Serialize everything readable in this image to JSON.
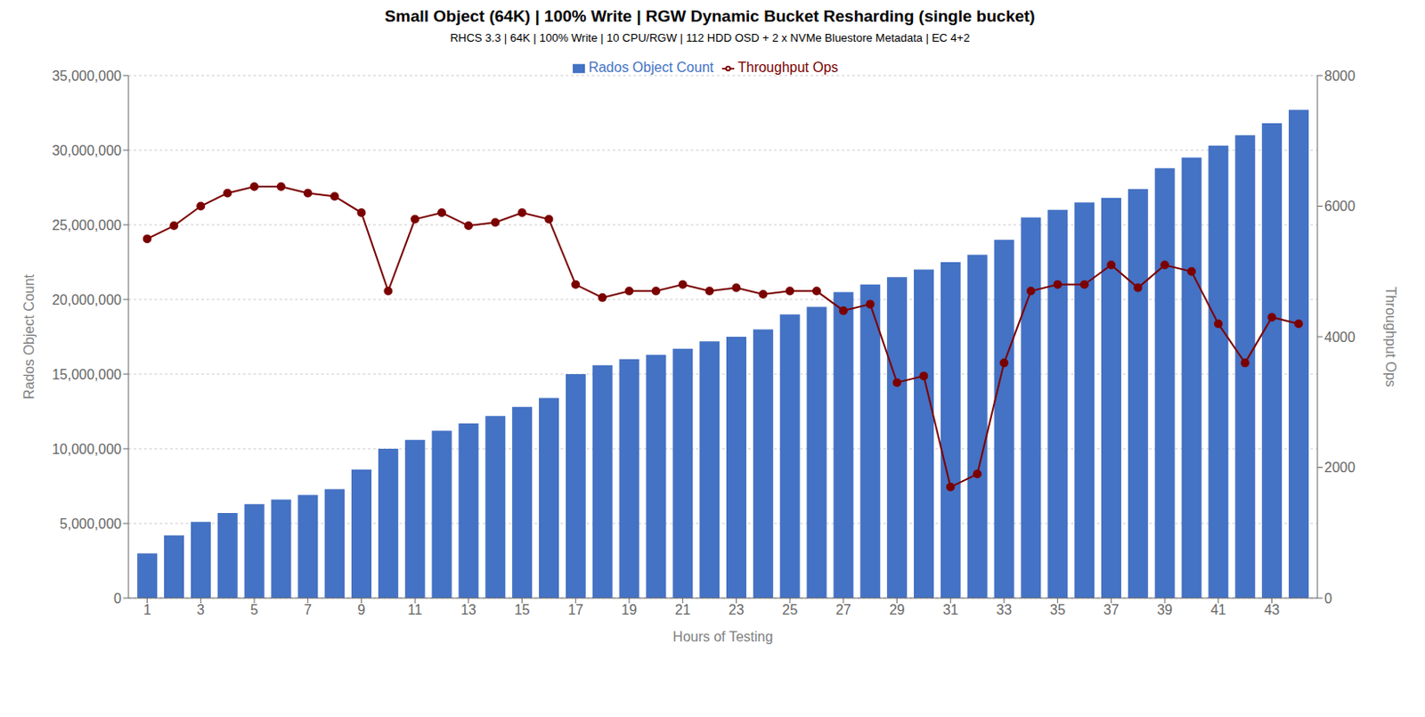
{
  "chart_data": {
    "type": "bar",
    "title": "Small Object (64K) | 100% Write | RGW Dynamic Bucket Resharding (single bucket)",
    "subtitle": "RHCS 3.3 | 64K | 100% Write | 10 CPU/RGW | 112 HDD OSD + 2 x NVMe Bluestore Metadata | EC 4+2",
    "xlabel": "Hours of Testing",
    "ylabel": "Rados Object Count",
    "y2label": "Throughput Ops",
    "x": [
      1,
      2,
      3,
      4,
      5,
      6,
      7,
      8,
      9,
      10,
      11,
      12,
      13,
      14,
      15,
      16,
      17,
      18,
      19,
      20,
      21,
      22,
      23,
      24,
      25,
      26,
      27,
      28,
      29,
      30,
      31,
      32,
      33,
      34,
      35,
      36,
      37,
      38,
      39,
      40,
      41,
      42,
      43,
      44
    ],
    "xlim": [
      0.3,
      44.7
    ],
    "xticks": [
      1,
      3,
      5,
      7,
      9,
      11,
      13,
      15,
      17,
      19,
      21,
      23,
      25,
      27,
      29,
      31,
      33,
      35,
      37,
      39,
      41,
      43
    ],
    "ylim": [
      0,
      35000000
    ],
    "yticks": [
      0,
      {
        "value": 5000000,
        "label": "5,000,000"
      },
      {
        "value": 10000000,
        "label": "10,000,000"
      },
      {
        "value": 15000000,
        "label": "15,000,000"
      },
      {
        "value": 20000000,
        "label": "20,000,000"
      },
      {
        "value": 25000000,
        "label": "25,000,000"
      },
      {
        "value": 30000000,
        "label": "30,000,000"
      },
      {
        "value": 35000000,
        "label": "35,000,000"
      }
    ],
    "y2lim": [
      0,
      8000
    ],
    "y2ticks": [
      0,
      2000,
      4000,
      6000,
      8000
    ],
    "grid": true,
    "legend": "top",
    "series": [
      {
        "name": "Rados Object Count",
        "type": "bar",
        "color": "#4472C4",
        "values": [
          3000000,
          4200000,
          5100000,
          5700000,
          6300000,
          6600000,
          6900000,
          7300000,
          8600000,
          10000000,
          10600000,
          11200000,
          11700000,
          12200000,
          12800000,
          13400000,
          15000000,
          15600000,
          16000000,
          16300000,
          16700000,
          17200000,
          17500000,
          18000000,
          19000000,
          19500000,
          20500000,
          21000000,
          21500000,
          22000000,
          22500000,
          23000000,
          24000000,
          25500000,
          26000000,
          26500000,
          26800000,
          27400000,
          28800000,
          29500000,
          30300000,
          31000000,
          31800000,
          32700000
        ]
      },
      {
        "name": "Throughput Ops",
        "type": "line",
        "axis": "y2",
        "marker": "circle",
        "color": "#7B0000",
        "values": [
          5500,
          5700,
          6000,
          6200,
          6300,
          6300,
          6200,
          6150,
          5900,
          4700,
          5800,
          5900,
          5700,
          5750,
          5900,
          5800,
          4800,
          4600,
          4700,
          4700,
          4800,
          4700,
          4750,
          4650,
          4700,
          4700,
          4400,
          4500,
          3300,
          3400,
          1700,
          1900,
          3600,
          4700,
          4800,
          4800,
          5100,
          4750,
          5100,
          5000,
          4200,
          3600,
          4300,
          4200
        ]
      }
    ]
  }
}
